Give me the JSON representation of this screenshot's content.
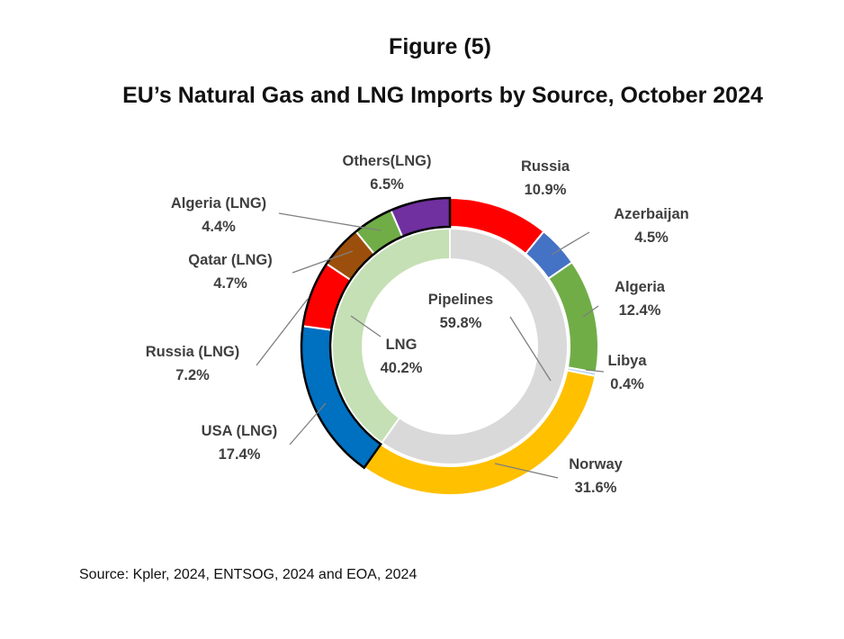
{
  "figure_label": "Figure (5)",
  "title": "EU’s Natural Gas and LNG Imports by Source, October 2024",
  "source": "Source: Kpler, 2024, ENTSOG, 2024 and EOA, 2024",
  "chart_data": {
    "type": "pie",
    "style": "double-ring donut",
    "inner_ring": [
      {
        "name": "Pipelines",
        "value": 59.8,
        "label": "59.8%",
        "color": "#d9d9d9"
      },
      {
        "name": "LNG",
        "value": 40.2,
        "label": "40.2%",
        "color": "#c5e0b4"
      }
    ],
    "outer_ring": [
      {
        "name": "Russia",
        "value": 10.9,
        "label": "10.9%",
        "color": "#ff0000"
      },
      {
        "name": "Azerbaijan",
        "value": 4.5,
        "label": "4.5%",
        "color": "#4472c4"
      },
      {
        "name": "Algeria",
        "value": 12.4,
        "label": "12.4%",
        "color": "#70ad47"
      },
      {
        "name": "Libya",
        "value": 0.4,
        "label": "0.4%",
        "color": "#bdd7ee"
      },
      {
        "name": "Norway",
        "value": 31.6,
        "label": "31.6%",
        "color": "#ffc000"
      },
      {
        "name": "USA (LNG)",
        "value": 17.4,
        "label": "17.4%",
        "color": "#0070c0"
      },
      {
        "name": "Russia (LNG)",
        "value": 7.2,
        "label": "7.2%",
        "color": "#ff0000"
      },
      {
        "name": "Qatar (LNG)",
        "value": 4.7,
        "label": "4.7%",
        "color": "#9c4f0c"
      },
      {
        "name": "Algeria  (LNG)",
        "value": 4.4,
        "label": "4.4%",
        "color": "#70ad47"
      },
      {
        "name": "Others(LNG)",
        "value": 6.5,
        "label": "6.5%",
        "color": "#7030a0"
      }
    ],
    "lng_group_border": "#000000"
  }
}
